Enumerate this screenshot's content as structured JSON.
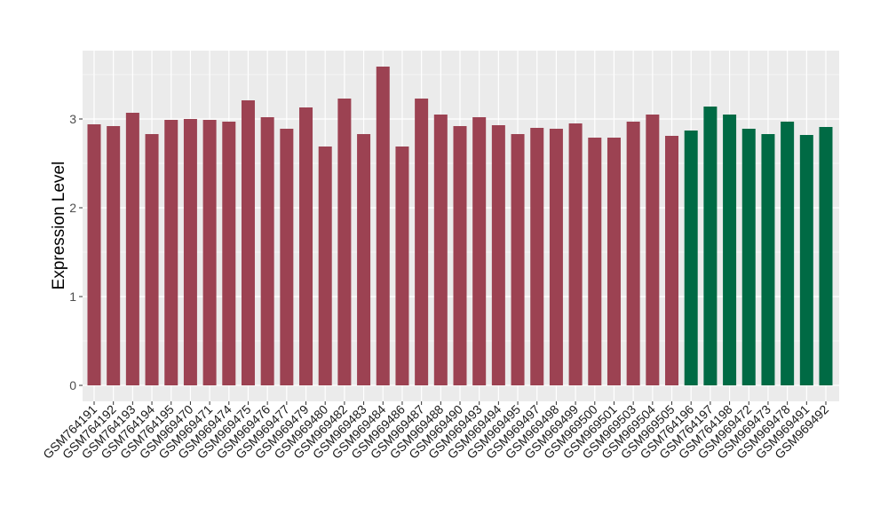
{
  "chart_data": {
    "type": "bar",
    "title": "",
    "xlabel": "",
    "ylabel": "Expression Level",
    "ylim": [
      -0.18,
      3.77
    ],
    "yticks": [
      0,
      1,
      2,
      3
    ],
    "grid": true,
    "legend": "none",
    "colors": {
      "group1": "#9C4252",
      "group2": "#006A44",
      "panel": "#EBEBEB",
      "grid": "#FFFFFF"
    },
    "categories": [
      "GSM764191",
      "GSM764192",
      "GSM764193",
      "GSM764194",
      "GSM764195",
      "GSM969470",
      "GSM969471",
      "GSM969474",
      "GSM969475",
      "GSM969476",
      "GSM969477",
      "GSM969479",
      "GSM969480",
      "GSM969482",
      "GSM969483",
      "GSM969484",
      "GSM969486",
      "GSM969487",
      "GSM969488",
      "GSM969490",
      "GSM969493",
      "GSM969494",
      "GSM969495",
      "GSM969497",
      "GSM969498",
      "GSM969499",
      "GSM969500",
      "GSM969501",
      "GSM969503",
      "GSM969504",
      "GSM969505",
      "GSM764196",
      "GSM764197",
      "GSM764198",
      "GSM969472",
      "GSM969473",
      "GSM969478",
      "GSM969491",
      "GSM969492"
    ],
    "values": [
      2.94,
      2.92,
      3.07,
      2.83,
      2.99,
      3.0,
      2.99,
      2.97,
      3.21,
      3.02,
      2.89,
      3.13,
      2.69,
      3.23,
      2.83,
      3.59,
      2.69,
      3.23,
      3.05,
      2.92,
      3.02,
      2.93,
      2.83,
      2.9,
      2.89,
      2.95,
      2.79,
      2.79,
      2.97,
      3.05,
      2.81,
      2.87,
      3.14,
      3.05,
      2.89,
      2.83,
      2.97,
      2.82,
      2.91
    ],
    "groups": [
      1,
      1,
      1,
      1,
      1,
      1,
      1,
      1,
      1,
      1,
      1,
      1,
      1,
      1,
      1,
      1,
      1,
      1,
      1,
      1,
      1,
      1,
      1,
      1,
      1,
      1,
      1,
      1,
      1,
      1,
      1,
      2,
      2,
      2,
      2,
      2,
      2,
      2,
      2
    ]
  }
}
